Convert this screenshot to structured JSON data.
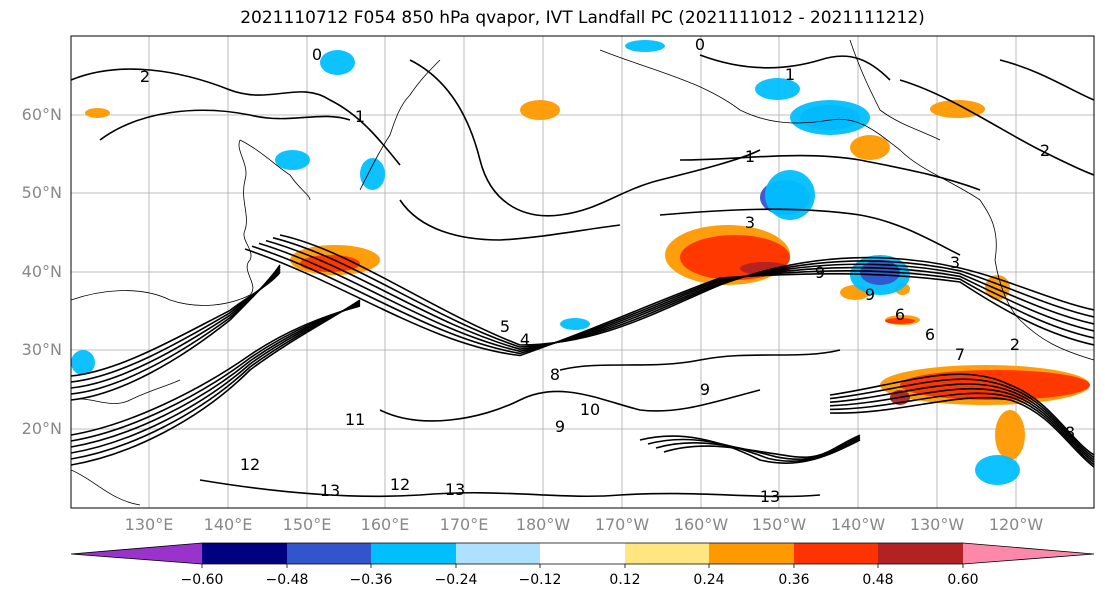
{
  "title": "2021110712 F054 850 hPa qvapor, IVT Landfall PC (2021111012 - 2021111212)",
  "lat_labels": [
    "60°N",
    "50°N",
    "40°N",
    "30°N",
    "20°N"
  ],
  "lon_labels": [
    "130°E",
    "140°E",
    "150°E",
    "160°E",
    "170°E",
    "180°W",
    "170°W",
    "160°W",
    "150°W",
    "140°W",
    "130°W",
    "120°W"
  ],
  "colorbar": {
    "colors": [
      "#9933cc",
      "#000080",
      "#3355cc",
      "#00bfff",
      "#aee0ff",
      "#ffffff",
      "#ffe680",
      "#ff9900",
      "#ff3300",
      "#b22222",
      "#ff88aa"
    ],
    "tick_labels": [
      "−0.60",
      "−0.48",
      "−0.36",
      "−0.24",
      "−0.12",
      "0.12",
      "0.24",
      "0.36",
      "0.48",
      "0.60"
    ]
  },
  "contour_labels": [
    "2",
    "1",
    "0",
    "0",
    "1",
    "1",
    "2",
    "3",
    "3",
    "9",
    "9",
    "5",
    "4",
    "6",
    "6",
    "7",
    "8",
    "9",
    "10",
    "11",
    "12",
    "12",
    "13",
    "13",
    "13",
    "2",
    "8",
    "9"
  ]
}
